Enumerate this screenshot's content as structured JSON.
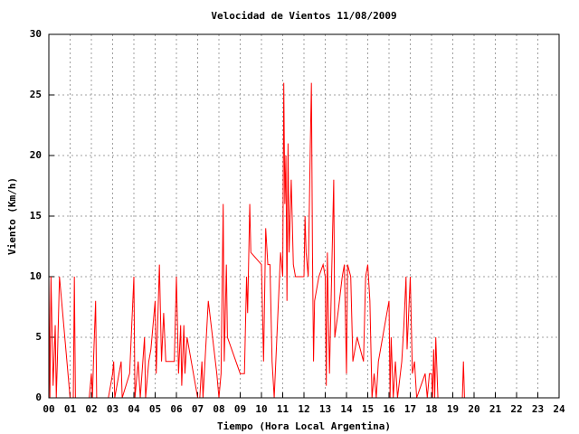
{
  "chart_data": {
    "type": "line",
    "title": "Velocidad de Vientos 11/08/2009",
    "x_label": "Tiempo (Hora Local Argentina)",
    "y_label": "Viento (Km/h)",
    "color": "#ff0000",
    "grid": true,
    "x": [
      0.0,
      0.05,
      0.1,
      0.2,
      0.3,
      0.35,
      0.4,
      0.5,
      0.6,
      0.8,
      1.0,
      1.15,
      1.2,
      1.25,
      1.9,
      2.0,
      2.05,
      2.1,
      2.2,
      2.25,
      2.8,
      3.0,
      3.05,
      3.1,
      3.4,
      3.45,
      3.8,
      4.0,
      4.05,
      4.2,
      4.3,
      4.5,
      4.55,
      4.7,
      4.8,
      5.0,
      5.05,
      5.2,
      5.3,
      5.4,
      5.5,
      5.9,
      6.0,
      6.1,
      6.2,
      6.25,
      6.35,
      6.4,
      6.5,
      6.7,
      7.0,
      7.1,
      7.2,
      7.25,
      7.5,
      7.9,
      8.0,
      8.1,
      8.2,
      8.25,
      8.35,
      8.4,
      8.6,
      9.0,
      9.2,
      9.3,
      9.35,
      9.45,
      9.5,
      10.0,
      10.1,
      10.2,
      10.3,
      10.4,
      10.5,
      10.6,
      10.8,
      10.9,
      11.0,
      11.05,
      11.1,
      11.15,
      11.2,
      11.25,
      11.3,
      11.4,
      11.5,
      11.6,
      12.0,
      12.05,
      12.1,
      12.2,
      12.3,
      12.35,
      12.4,
      12.45,
      12.5,
      12.7,
      12.9,
      13.0,
      13.05,
      13.1,
      13.2,
      13.3,
      13.4,
      13.45,
      13.6,
      13.8,
      13.9,
      14.0,
      14.05,
      14.2,
      14.3,
      14.5,
      14.8,
      14.9,
      15.0,
      15.1,
      15.2,
      15.3,
      15.4,
      15.5,
      15.8,
      16.0,
      16.05,
      16.1,
      16.2,
      16.3,
      16.4,
      16.6,
      16.7,
      16.8,
      16.85,
      17.0,
      17.1,
      17.2,
      17.3,
      17.5,
      17.7,
      17.8,
      17.9,
      18.0,
      18.05,
      18.1,
      18.15,
      18.2,
      18.3,
      19.45,
      19.5,
      19.55
    ],
    "values": [
      10,
      0,
      10,
      1,
      6,
      0,
      3,
      10,
      8,
      4,
      0,
      0,
      10,
      0,
      0,
      2,
      0,
      3,
      8,
      0,
      0,
      2,
      3,
      0,
      3,
      0,
      2,
      10,
      0,
      3,
      0,
      5,
      0,
      3,
      4,
      8,
      2,
      11,
      3,
      7,
      3,
      3,
      10,
      2,
      6,
      1,
      6,
      2,
      5,
      3,
      0,
      0,
      3,
      0,
      8,
      2,
      0,
      2,
      16,
      3,
      11,
      5,
      4,
      2,
      2,
      10,
      7,
      16,
      12,
      11,
      3,
      14,
      11,
      11,
      3,
      0,
      8,
      12,
      10,
      26,
      16,
      20,
      8,
      21,
      12,
      18,
      11,
      10,
      10,
      15,
      12,
      10,
      21,
      26,
      12,
      3,
      8,
      10,
      11,
      10,
      1,
      12,
      2,
      10,
      18,
      5,
      7,
      10,
      11,
      2,
      11,
      10,
      3,
      5,
      3,
      10,
      11,
      8,
      0,
      2,
      0,
      3,
      6,
      8,
      0,
      5,
      0,
      3,
      0,
      3,
      6,
      10,
      4,
      10,
      2,
      3,
      0,
      1,
      2,
      0,
      2,
      2,
      0,
      4,
      0,
      5,
      0,
      0,
      3,
      0
    ],
    "xlim": [
      0,
      24
    ],
    "xticks": [
      {
        "value": 0,
        "label": "00"
      },
      {
        "value": 1,
        "label": "01"
      },
      {
        "value": 2,
        "label": "02"
      },
      {
        "value": 3,
        "label": "03"
      },
      {
        "value": 4,
        "label": "04"
      },
      {
        "value": 5,
        "label": "05"
      },
      {
        "value": 6,
        "label": "06"
      },
      {
        "value": 7,
        "label": "07"
      },
      {
        "value": 8,
        "label": "08"
      },
      {
        "value": 9,
        "label": "09"
      },
      10,
      11,
      12,
      13,
      14,
      15,
      16,
      17,
      18,
      19,
      20,
      21,
      22,
      23,
      24
    ],
    "ylim": [
      0,
      30
    ],
    "yticks": [
      0,
      5,
      10,
      15,
      20,
      25,
      30
    ]
  }
}
